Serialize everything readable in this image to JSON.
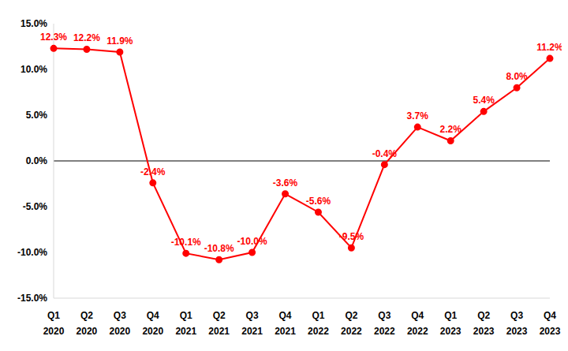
{
  "chart_data": {
    "type": "line",
    "categories": [
      "Q1 2020",
      "Q2 2020",
      "Q3 2020",
      "Q4 2020",
      "Q1 2021",
      "Q2 2021",
      "Q3 2021",
      "Q4 2021",
      "Q1 2022",
      "Q2 2022",
      "Q3 2022",
      "Q4 2022",
      "Q1 2023",
      "Q2 2023",
      "Q3 2023",
      "Q4 2023"
    ],
    "values": [
      12.3,
      12.2,
      11.9,
      -2.4,
      -10.1,
      -10.8,
      -10.0,
      -3.6,
      -5.6,
      -9.5,
      -0.4,
      3.7,
      2.2,
      5.4,
      8.0,
      11.2
    ],
    "value_labels": [
      "12.3%",
      "12.2%",
      "11.9%",
      "-2.4%",
      "-10.1%",
      "-10.8%",
      "-10.0%",
      "-3.6%",
      "-5.6%",
      "-9.5%",
      "-0.4%",
      "3.7%",
      "2.2%",
      "5.4%",
      "8.0%",
      "11.2%"
    ],
    "color": "#ff0000",
    "ylim": [
      -15,
      15
    ],
    "yticks": [
      {
        "value": -15,
        "label": "-15.0%"
      },
      {
        "value": -10,
        "label": "-10.0%"
      },
      {
        "value": -5,
        "label": "-5.0%"
      },
      {
        "value": 0,
        "label": "0.0%"
      },
      {
        "value": 5,
        "label": "5.0%"
      },
      {
        "value": 10,
        "label": "10.0%"
      },
      {
        "value": 15,
        "label": "15.0%"
      }
    ],
    "grid": false,
    "data_labels": true,
    "marker": "circle"
  }
}
